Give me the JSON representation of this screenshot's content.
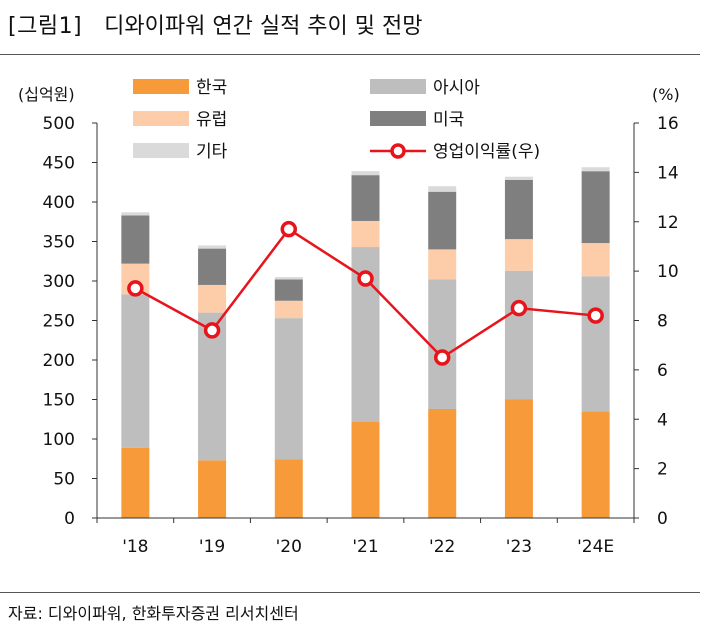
{
  "figure": {
    "label": "[그림1]",
    "title": "디와이파워 연간 실적 추이 및 전망",
    "source": "자료: 디와이파워, 한화투자증권 리서치센터"
  },
  "chart_data": {
    "type": "bar",
    "stacked": true,
    "categories": [
      "'18",
      "'19",
      "'20",
      "'21",
      "'22",
      "'23",
      "'24E"
    ],
    "y_left": {
      "unit": "(십억원)",
      "min": 0,
      "max": 500,
      "step": 50
    },
    "y_right": {
      "unit": "(%)",
      "min": 0,
      "max": 16,
      "step": 2
    },
    "series": [
      {
        "name": "한국",
        "color": "#F79A3A",
        "values": [
          89,
          73,
          74,
          122,
          138,
          150,
          135
        ]
      },
      {
        "name": "아시아",
        "color": "#BEBEBE",
        "values": [
          194,
          187,
          179,
          221,
          164,
          163,
          171
        ]
      },
      {
        "name": "유럽",
        "color": "#FCCDA8",
        "values": [
          39,
          35,
          22,
          33,
          38,
          40,
          42
        ]
      },
      {
        "name": "미국",
        "color": "#7F7F7F",
        "values": [
          61,
          46,
          27,
          58,
          73,
          75,
          91
        ]
      },
      {
        "name": "기타",
        "color": "#DADADA",
        "values": [
          4,
          4,
          3,
          5,
          7,
          4,
          5
        ]
      }
    ],
    "line": {
      "name": "영업이익률(우)",
      "color": "#E8141C",
      "axis": "right",
      "values": [
        9.3,
        7.6,
        11.7,
        9.7,
        6.5,
        8.5,
        8.2
      ]
    },
    "legend": [
      "한국",
      "아시아",
      "유럽",
      "미국",
      "기타",
      "영업이익률(우)"
    ]
  }
}
